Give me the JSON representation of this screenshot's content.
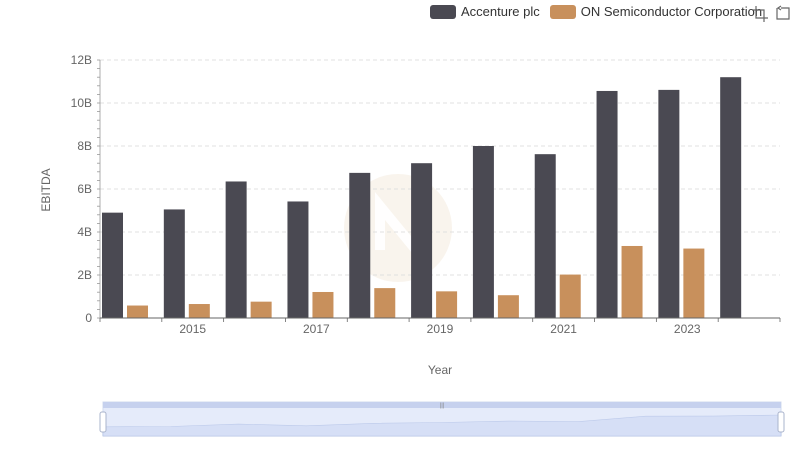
{
  "legend": {
    "items": [
      {
        "name": "Accenture plc",
        "color": "#4a4952"
      },
      {
        "name": "ON Semiconductor Corporation",
        "color": "#c8905c"
      }
    ]
  },
  "toolbox": {
    "icons": [
      "zoom-icon",
      "restore-icon"
    ]
  },
  "chart_data": {
    "type": "bar",
    "xlabel": "Year",
    "ylabel": "EBITDA",
    "categories": [
      "2014",
      "2015",
      "2016",
      "2017",
      "2018",
      "2019",
      "2020",
      "2021",
      "2022",
      "2023",
      "2024"
    ],
    "x_tick_labels": [
      "2015",
      "2017",
      "2019",
      "2021",
      "2023"
    ],
    "y_tick_labels": [
      "0",
      "2B",
      "4B",
      "6B",
      "8B",
      "10B",
      "12B"
    ],
    "ylim": [
      0,
      12000000000
    ],
    "series": [
      {
        "name": "Accenture plc",
        "color": "#4a4952",
        "values": [
          4900000000,
          5050000000,
          6350000000,
          5420000000,
          6750000000,
          7200000000,
          8000000000,
          7620000000,
          10560000000,
          10610000000,
          11200000000
        ]
      },
      {
        "name": "ON Semiconductor Corporation",
        "color": "#c8905c",
        "values": [
          580000000,
          650000000,
          760000000,
          1210000000,
          1390000000,
          1240000000,
          1060000000,
          2020000000,
          3350000000,
          3230000000,
          null
        ]
      }
    ],
    "grid": true,
    "legend_position": "top-right"
  },
  "zoom_slider": {
    "start_percent": 0,
    "end_percent": 100
  }
}
